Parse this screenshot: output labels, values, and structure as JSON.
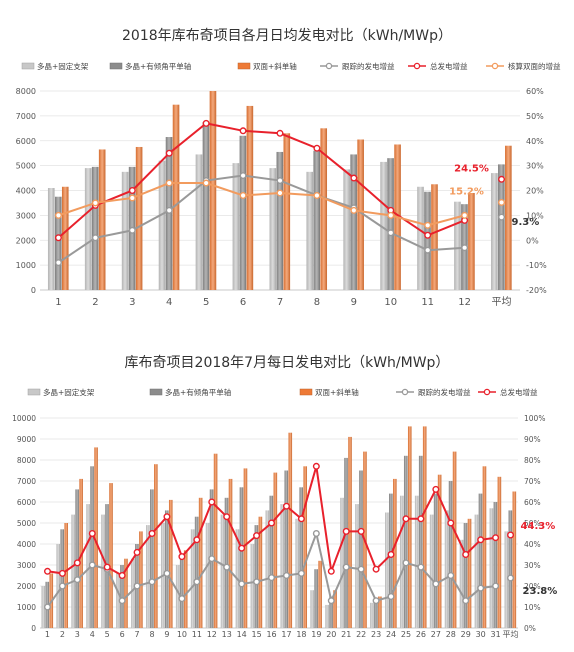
{
  "chart_data": [
    {
      "type": "bar",
      "title": "2018年库布奇项目各月日均发电对比（kWh/MWp）",
      "categories": [
        "1",
        "2",
        "3",
        "4",
        "5",
        "6",
        "7",
        "8",
        "9",
        "10",
        "11",
        "12",
        "平均"
      ],
      "ylim": [
        0,
        8000
      ],
      "y_ticks": [
        "0",
        "1000",
        "2000",
        "3000",
        "4000",
        "5000",
        "6000",
        "7000",
        "8000"
      ],
      "y2lim": [
        -20,
        60
      ],
      "y2_ticks": [
        "-20%",
        "-10%",
        "0%",
        "10%",
        "20%",
        "30%",
        "40%",
        "50%",
        "60%"
      ],
      "series": [
        {
          "name": "多晶+固定支架",
          "kind": "bar",
          "color": "#c8c8c8",
          "values": [
            4100,
            4900,
            4750,
            5200,
            5450,
            5100,
            4900,
            4750,
            4850,
            5150,
            4150,
            3550,
            4700
          ]
        },
        {
          "name": "多晶+有倾角平单轴",
          "kind": "bar",
          "color": "#8c8c8c",
          "values": [
            3750,
            4950,
            4950,
            6150,
            6750,
            6200,
            5550,
            5600,
            5450,
            5300,
            3950,
            3450,
            5050
          ]
        },
        {
          "name": "双面+斜单轴",
          "kind": "bar",
          "color": "#ee7a36",
          "values": [
            4150,
            5650,
            5750,
            7450,
            8000,
            7400,
            6300,
            6500,
            6050,
            5850,
            4250,
            3900,
            5800
          ]
        },
        {
          "name": "跟踪的发电增益",
          "kind": "line",
          "color": "#999999",
          "values": [
            -9,
            1,
            4,
            12,
            24,
            26,
            24,
            18,
            13,
            3,
            -4,
            -3,
            9.3
          ]
        },
        {
          "name": "总发电增益",
          "kind": "line",
          "color": "#e8212c",
          "values": [
            1,
            14,
            20,
            35,
            47,
            44,
            43,
            37,
            25,
            12,
            2,
            8,
            24.5
          ]
        },
        {
          "name": "核算双面的增益",
          "kind": "line",
          "color": "#f29b5e",
          "values": [
            10,
            15,
            17,
            23,
            23,
            18,
            19,
            18,
            12,
            10,
            6,
            10,
            15.2
          ]
        }
      ],
      "annotations": [
        "24.5%",
        "15.2%",
        "9.3%"
      ]
    },
    {
      "type": "bar",
      "title": "库布奇项目2018年7月每日发电对比（kWh/MWp）",
      "categories": [
        "1",
        "2",
        "3",
        "4",
        "5",
        "6",
        "7",
        "8",
        "9",
        "10",
        "11",
        "12",
        "13",
        "14",
        "15",
        "16",
        "17",
        "18",
        "19",
        "20",
        "21",
        "22",
        "23",
        "24",
        "25",
        "26",
        "27",
        "28",
        "29",
        "30",
        "31",
        "平均"
      ],
      "ylim": [
        0,
        10000
      ],
      "y_ticks": [
        "0",
        "1000",
        "2000",
        "3000",
        "4000",
        "5000",
        "6000",
        "7000",
        "8000",
        "9000",
        "10000"
      ],
      "y2lim": [
        0,
        100
      ],
      "y2_ticks": [
        "0%",
        "10%",
        "20%",
        "30%",
        "40%",
        "50%",
        "60%",
        "70%",
        "80%",
        "90%",
        "100%"
      ],
      "series": [
        {
          "name": "多晶+固定支架",
          "kind": "bar",
          "color": "#c8c8c8",
          "values": [
            2000,
            4000,
            5400,
            5900,
            5400,
            2600,
            3300,
            4900,
            5000,
            3000,
            4700,
            5000,
            5400,
            4700,
            4000,
            5600,
            5900,
            5200,
            1800,
            1100,
            6200,
            5900,
            1200,
            5500,
            6300,
            6300,
            5400,
            5600,
            4200,
            5400,
            5700,
            4600
          ]
        },
        {
          "name": "多晶+有倾角平单轴",
          "kind": "bar",
          "color": "#8c8c8c",
          "values": [
            2200,
            4700,
            6600,
            7700,
            5900,
            3000,
            4000,
            6600,
            5600,
            3400,
            5300,
            6600,
            6200,
            6700,
            4900,
            6300,
            7500,
            6700,
            2800,
            1500,
            8100,
            7500,
            1300,
            6400,
            8200,
            8200,
            6400,
            7000,
            5000,
            6400,
            6000,
            5600
          ]
        },
        {
          "name": "双面+斜单轴",
          "kind": "bar",
          "color": "#ee7a36",
          "values": [
            2600,
            5000,
            7100,
            8600,
            6900,
            3300,
            4600,
            7800,
            6100,
            3700,
            6200,
            8300,
            7100,
            7600,
            5300,
            7400,
            9300,
            7700,
            3200,
            1800,
            9100,
            8400,
            1500,
            7100,
            9600,
            9600,
            7300,
            8400,
            5200,
            7700,
            7200,
            6500
          ]
        },
        {
          "name": "跟踪的发电增益",
          "kind": "line",
          "color": "#999999",
          "values": [
            10,
            20,
            23,
            30,
            28,
            13,
            20,
            22,
            26,
            14,
            22,
            33,
            29,
            21,
            22,
            24,
            25,
            26,
            45,
            13,
            29,
            28,
            13,
            15,
            31,
            29,
            21,
            25,
            13,
            19,
            20,
            23.8
          ]
        },
        {
          "name": "总发电增益",
          "kind": "line",
          "color": "#e8212c",
          "values": [
            27,
            26,
            31,
            45,
            29,
            25,
            36,
            45,
            53,
            34,
            42,
            60,
            53,
            38,
            44,
            50,
            58,
            52,
            77,
            27,
            46,
            46,
            28,
            35,
            52,
            52,
            66,
            50,
            35,
            42,
            43,
            44.3
          ]
        }
      ],
      "annotations": [
        "44.3%",
        "23.8%"
      ]
    }
  ]
}
